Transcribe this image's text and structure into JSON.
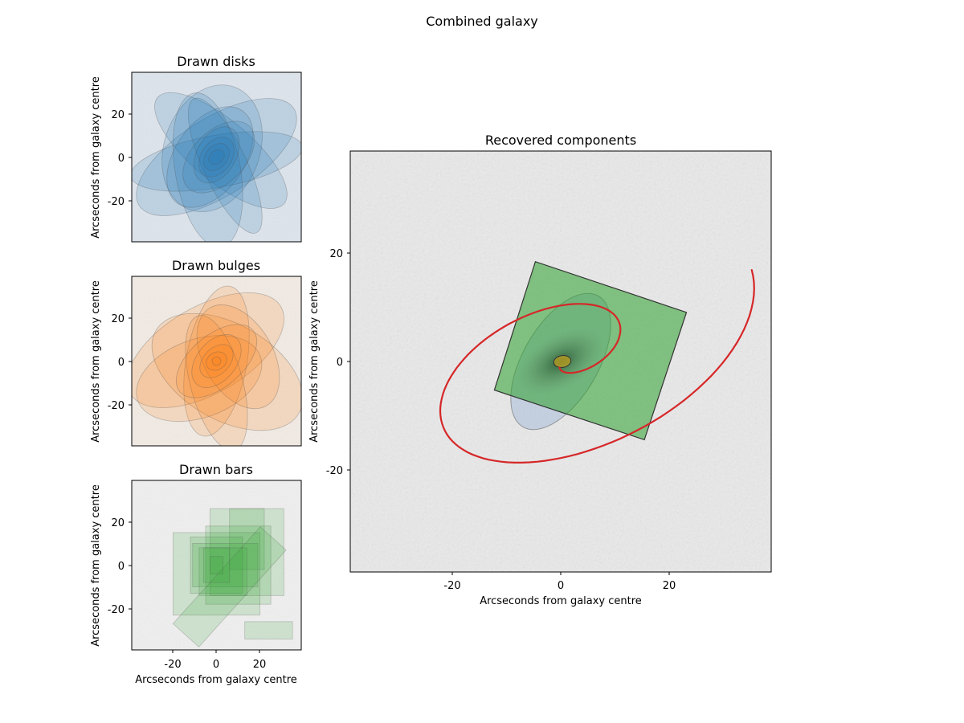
{
  "figure_title": "Combined galaxy",
  "chart_data": [
    {
      "type": "image",
      "title": "Drawn disks",
      "ylabel": "Arcseconds from galaxy centre",
      "xlim": [
        -39,
        39
      ],
      "ylim": [
        -39,
        39
      ],
      "yticks": [
        20,
        0,
        -20
      ],
      "yticklabels": [
        "20",
        "0",
        "-20"
      ],
      "color": "#1f77b4",
      "shape": "ellipse",
      "components": [
        {
          "cx": 0,
          "cy": 0,
          "rx": 42,
          "ry": 18,
          "angle": 32
        },
        {
          "cx": 2,
          "cy": 3,
          "rx": 38,
          "ry": 14,
          "angle": -40
        },
        {
          "cx": -2,
          "cy": 4,
          "rx": 30,
          "ry": 22,
          "angle": 70
        },
        {
          "cx": 0,
          "cy": -2,
          "rx": 40,
          "ry": 12,
          "angle": 10
        },
        {
          "cx": -3,
          "cy": 0,
          "rx": 26,
          "ry": 16,
          "angle": 55
        },
        {
          "cx": 4,
          "cy": -4,
          "rx": 34,
          "ry": 10,
          "angle": -65
        },
        {
          "cx": -4,
          "cy": -6,
          "rx": 36,
          "ry": 15,
          "angle": -80
        },
        {
          "cx": 1,
          "cy": 0,
          "rx": 20,
          "ry": 12,
          "angle": 45
        },
        {
          "cx": 0,
          "cy": 1,
          "rx": 14,
          "ry": 9,
          "angle": 60
        },
        {
          "cx": 0,
          "cy": 0,
          "rx": 10,
          "ry": 7,
          "angle": 55
        },
        {
          "cx": 0,
          "cy": 0,
          "rx": 7,
          "ry": 5,
          "angle": 50
        },
        {
          "cx": 0,
          "cy": 0,
          "rx": 4,
          "ry": 3,
          "angle": 40
        }
      ]
    },
    {
      "type": "image",
      "title": "Drawn bulges",
      "ylabel": "Arcseconds from galaxy centre",
      "xlim": [
        -39,
        39
      ],
      "ylim": [
        -39,
        39
      ],
      "yticks": [
        20,
        0,
        -20
      ],
      "yticklabels": [
        "20",
        "0",
        "-20"
      ],
      "color": "#ff7f0e",
      "shape": "ellipse",
      "components": [
        {
          "cx": -5,
          "cy": 5,
          "rx": 40,
          "ry": 20,
          "angle": 30
        },
        {
          "cx": 5,
          "cy": -5,
          "rx": 38,
          "ry": 22,
          "angle": -30
        },
        {
          "cx": 0,
          "cy": 0,
          "rx": 35,
          "ry": 14,
          "angle": 80
        },
        {
          "cx": -8,
          "cy": -8,
          "rx": 30,
          "ry": 18,
          "angle": 20
        },
        {
          "cx": 10,
          "cy": 2,
          "rx": 26,
          "ry": 16,
          "angle": -60
        },
        {
          "cx": 0,
          "cy": -10,
          "rx": 32,
          "ry": 12,
          "angle": -75
        },
        {
          "cx": 0,
          "cy": 0,
          "rx": 22,
          "ry": 12,
          "angle": 40
        },
        {
          "cx": 0,
          "cy": 0,
          "rx": 14,
          "ry": 9,
          "angle": 50
        },
        {
          "cx": 0,
          "cy": 0,
          "rx": 9,
          "ry": 6,
          "angle": 45
        },
        {
          "cx": 0,
          "cy": 0,
          "rx": 5,
          "ry": 4,
          "angle": 30
        },
        {
          "cx": 0,
          "cy": 0,
          "rx": 2,
          "ry": 2,
          "angle": 0
        }
      ]
    },
    {
      "type": "image",
      "title": "Drawn bars",
      "xlabel": "Arcseconds from galaxy centre",
      "ylabel": "Arcseconds from galaxy centre",
      "xlim": [
        -39,
        39
      ],
      "ylim": [
        -39,
        39
      ],
      "xticks": [
        -20,
        0,
        20
      ],
      "xticklabels": [
        "-20",
        "0",
        "20"
      ],
      "yticks": [
        20,
        0,
        -20
      ],
      "yticklabels": [
        "20",
        "0",
        "-20"
      ],
      "color": "#2ca02c",
      "shape": "rectangle",
      "components": [
        {
          "cx": 14,
          "cy": 6,
          "w": 34,
          "h": 40,
          "angle": 0
        },
        {
          "cx": 14,
          "cy": 12,
          "w": 16,
          "h": 28,
          "angle": 0
        },
        {
          "cx": 10,
          "cy": 0,
          "w": 30,
          "h": 36,
          "angle": 0
        },
        {
          "cx": 0,
          "cy": -4,
          "w": 40,
          "h": 38,
          "angle": 0
        },
        {
          "cx": 0,
          "cy": 0,
          "w": 24,
          "h": 26,
          "angle": 0
        },
        {
          "cx": 4,
          "cy": 0,
          "w": 30,
          "h": 20,
          "angle": 0
        },
        {
          "cx": 3,
          "cy": -3,
          "w": 22,
          "h": 22,
          "angle": 0
        },
        {
          "cx": 6,
          "cy": -10,
          "w": 16,
          "h": 60,
          "angle": -42
        },
        {
          "cx": 24,
          "cy": -30,
          "w": 22,
          "h": 8,
          "angle": 0
        },
        {
          "cx": 0,
          "cy": 0,
          "w": 12,
          "h": 16,
          "angle": 0
        },
        {
          "cx": 0,
          "cy": 0,
          "w": 6,
          "h": 8,
          "angle": 0
        }
      ]
    },
    {
      "type": "image",
      "title": "Recovered components",
      "xlabel": "Arcseconds from galaxy centre",
      "ylabel": "Arcseconds from galaxy centre",
      "xlim": [
        -39,
        39
      ],
      "ylim": [
        -39,
        39
      ],
      "xticks": [
        -20,
        0,
        20
      ],
      "xticklabels": [
        "-20",
        "0",
        "20"
      ],
      "yticks": [
        20,
        0,
        -20
      ],
      "yticklabels": [
        "20",
        "0",
        "-20"
      ],
      "disk": {
        "cx": 0,
        "cy": 0,
        "rx": 14,
        "ry": 7,
        "angle": 60,
        "color": "#a8bcd8"
      },
      "bulge": {
        "cx": 0.3,
        "cy": 0,
        "rx": 1.6,
        "ry": 1.1,
        "angle": 10,
        "color": "#c5a21c"
      },
      "bar": {
        "corners": [
          [
            -12.3,
            -5.3
          ],
          [
            15.5,
            -14.5
          ],
          [
            23.3,
            9.1
          ],
          [
            -4.7,
            18.5
          ]
        ],
        "color": "#2ca02c"
      },
      "spiral": {
        "color": "#d62728",
        "turns": 1.35,
        "arms": 1,
        "tilt_deg": 25,
        "axis_ratio": 0.55
      }
    }
  ]
}
